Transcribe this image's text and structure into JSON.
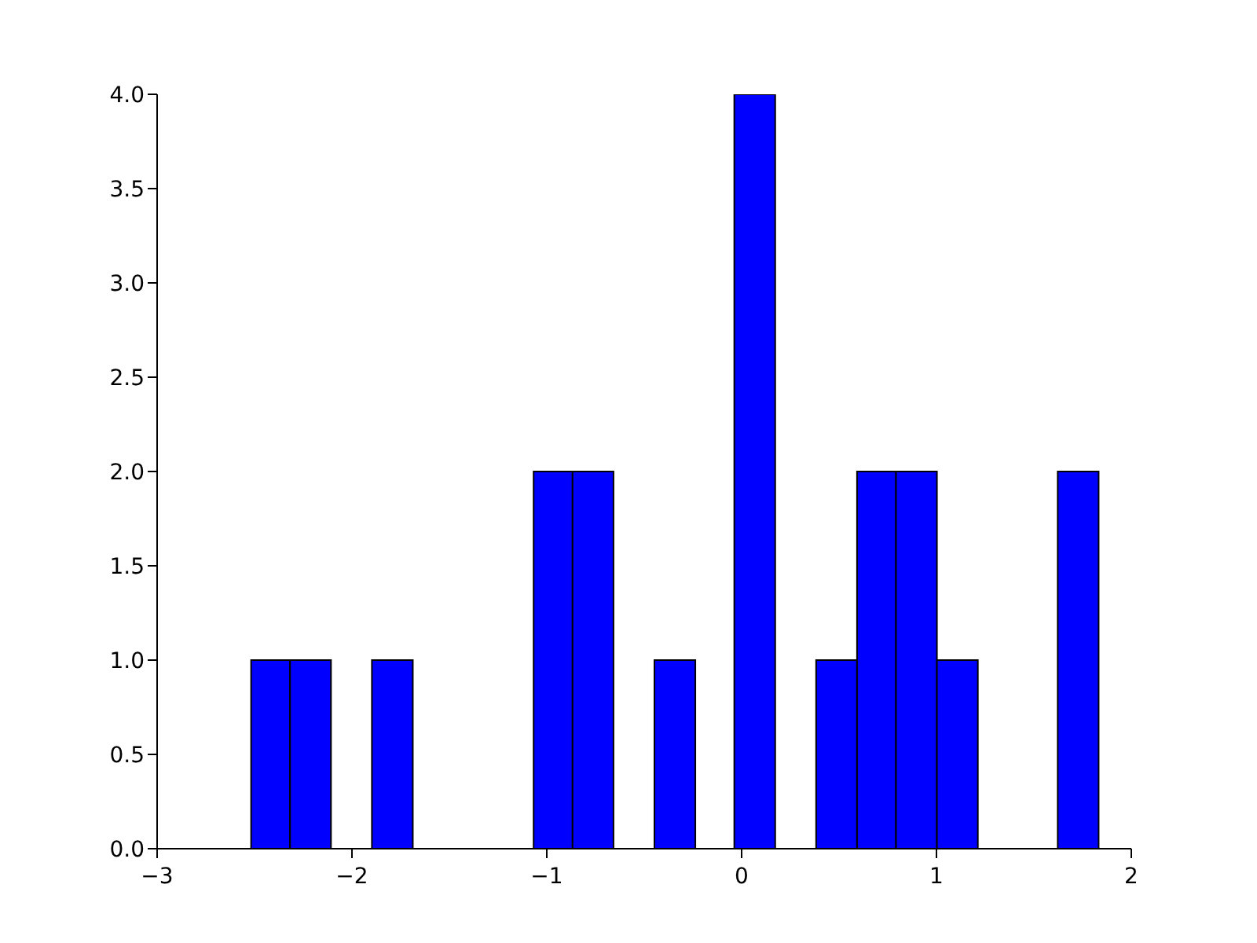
{
  "chart_data": {
    "type": "histogram",
    "bins": [
      -2.52,
      -2.32,
      -2.11,
      -1.9,
      -1.69,
      -1.07,
      -0.87,
      -0.66,
      -0.45,
      -0.24,
      -0.04,
      0.17,
      0.38,
      0.59,
      0.79,
      1.0,
      1.21,
      1.62,
      1.83
    ],
    "values": [
      1,
      1,
      0,
      1,
      0,
      2,
      2,
      0,
      1,
      0,
      4,
      0,
      1,
      2,
      2,
      1,
      0,
      2
    ],
    "color": "#0000ff",
    "xlim": [
      -3,
      2
    ],
    "xticks": [
      {
        "value": -3,
        "label": "−3"
      },
      {
        "value": -2,
        "label": "−2"
      },
      {
        "value": -1,
        "label": "−1"
      },
      0,
      1,
      2
    ],
    "ylim": [
      0,
      4
    ],
    "yticks": [
      {
        "value": 0,
        "label": "0.0"
      },
      {
        "value": 0.5,
        "label": "0.5"
      },
      {
        "value": 1,
        "label": "1.0"
      },
      {
        "value": 1.5,
        "label": "1.5"
      },
      {
        "value": 2,
        "label": "2.0"
      },
      {
        "value": 2.5,
        "label": "2.5"
      },
      {
        "value": 3,
        "label": "3.0"
      },
      {
        "value": 3.5,
        "label": "3.5"
      },
      {
        "value": 4,
        "label": "4.0"
      }
    ],
    "grid": false,
    "legend": false
  }
}
